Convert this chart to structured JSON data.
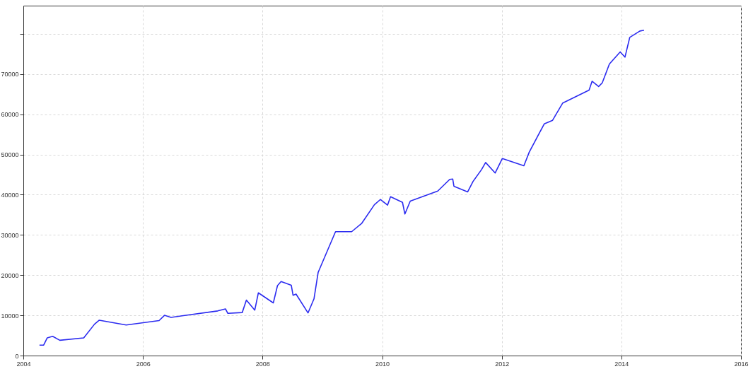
{
  "chart_data": {
    "type": "line",
    "x": [
      2004.27,
      2004.34,
      2004.4,
      2004.49,
      2004.61,
      2005.01,
      2005.19,
      2005.27,
      2005.72,
      2006.27,
      2006.36,
      2006.47,
      2007.25,
      2007.38,
      2007.42,
      2007.66,
      2007.73,
      2007.87,
      2007.93,
      2008.18,
      2008.25,
      2008.31,
      2008.48,
      2008.51,
      2008.56,
      2008.76,
      2008.86,
      2008.93,
      2009.22,
      2009.49,
      2009.66,
      2009.87,
      2009.97,
      2010.09,
      2010.14,
      2010.34,
      2010.38,
      2010.47,
      2010.93,
      2011.13,
      2011.18,
      2011.2,
      2011.43,
      2011.52,
      2011.66,
      2011.73,
      2011.89,
      2012.01,
      2012.37,
      2012.46,
      2012.71,
      2012.85,
      2013.02,
      2013.46,
      2013.51,
      2013.62,
      2013.68,
      2013.8,
      2013.98,
      2014.06,
      2014.14,
      2014.31,
      2014.38
    ],
    "series": [
      {
        "color": "#2b2bf0",
        "values": [
          2600,
          2600,
          4400,
          4800,
          3800,
          4400,
          7800,
          8800,
          7600,
          8700,
          10000,
          9500,
          11100,
          11600,
          10500,
          10700,
          13800,
          11300,
          15600,
          13100,
          17400,
          18400,
          17500,
          15000,
          15300,
          10600,
          14100,
          20700,
          30800,
          30800,
          32900,
          37500,
          38800,
          37400,
          39500,
          38100,
          35200,
          38400,
          40900,
          43800,
          43900,
          42100,
          40700,
          43300,
          46200,
          48000,
          45400,
          49000,
          47200,
          50600,
          57600,
          58500,
          62800,
          66000,
          68200,
          66900,
          67800,
          72500,
          75500,
          74200,
          79100,
          80700,
          80900
        ]
      }
    ],
    "xlim": [
      2004,
      2016
    ],
    "xticks": [
      2004,
      2006,
      2008,
      2010,
      2012,
      2014,
      2016
    ],
    "ylim": [
      0,
      87000
    ],
    "yticks": [
      0,
      10000,
      20000,
      30000,
      40000,
      50000,
      60000,
      70000,
      {
        "value": 80000,
        "label": null
      }
    ],
    "grid": true,
    "line_style": "solid"
  }
}
